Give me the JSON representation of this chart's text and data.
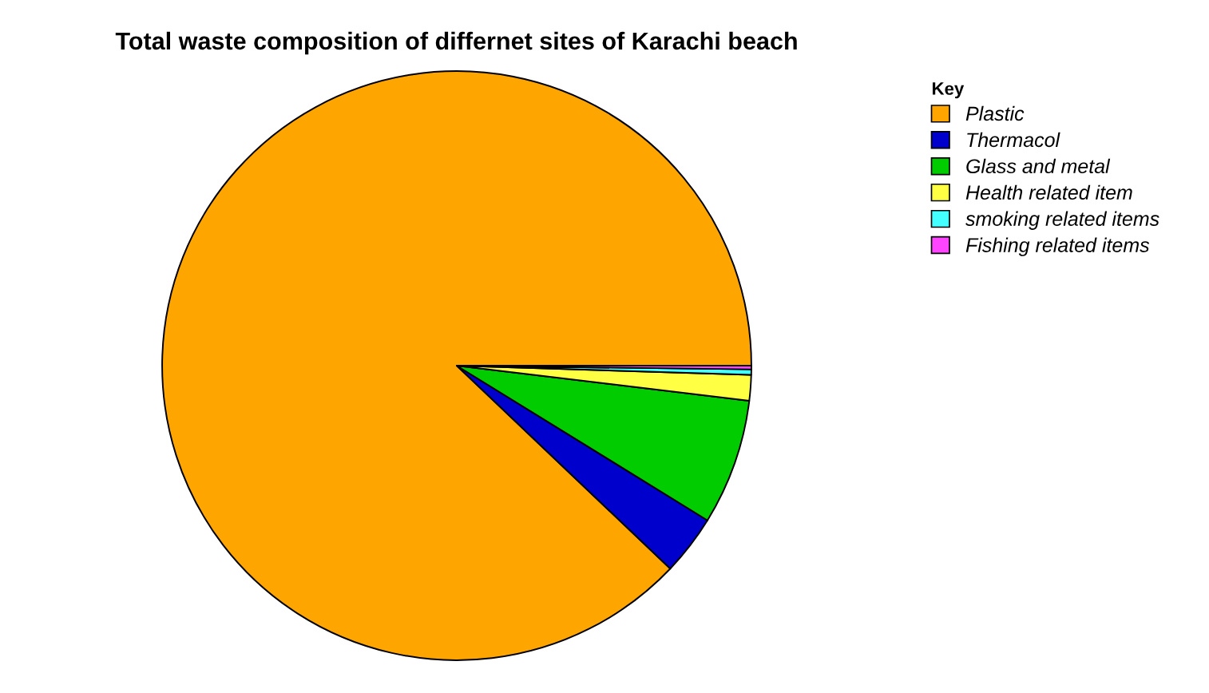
{
  "chart_data": {
    "type": "pie",
    "title": "Total waste composition of differnet sites of Karachi beach",
    "legend_title": "Key",
    "legend": "right",
    "categories": [
      "Plastic",
      "Thermacol",
      "Glass and metal",
      "Health related item",
      "smoking related items",
      "Fishing related items"
    ],
    "values": [
      87.9,
      3.3,
      6.9,
      1.4,
      0.3,
      0.2
    ],
    "colors": [
      "#ffa500",
      "#0000cc",
      "#00cc00",
      "#ffff44",
      "#44ffff",
      "#ff44ff"
    ]
  }
}
